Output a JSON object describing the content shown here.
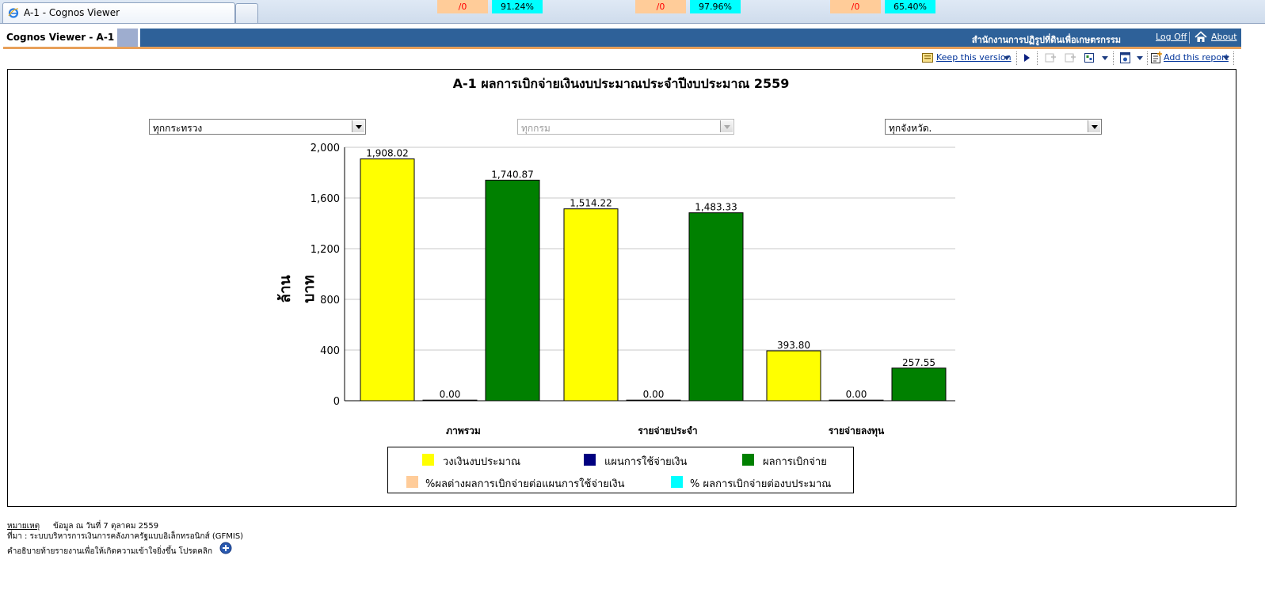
{
  "browser": {
    "tab_title": "A-1 - Cognos Viewer"
  },
  "header": {
    "app_title": "Cognos Viewer - A-1",
    "organization": "สำนักงานการปฏิรูปที่ดินเพื่อเกษตรกรรม",
    "logoff": "Log Off",
    "about": "About"
  },
  "toolbar": {
    "keep_version": "Keep this version",
    "add_report": "Add this report"
  },
  "report": {
    "title": "A-1 ผลการเบิกจ่ายเงินงบประมาณประจำปีงบประมาณ 2559",
    "filters": {
      "ministry": "ทุกกระทรวง",
      "department": "ทุกกรม",
      "province": "ทุกจังหวัด."
    }
  },
  "chart_data": {
    "type": "bar",
    "ylabel": "ล้านบาท",
    "ylim": [
      0,
      2000
    ],
    "yticks": [
      "0",
      "400",
      "800",
      "1,200",
      "1,600",
      "2,000"
    ],
    "grid": true,
    "categories": [
      "ภาพรวม",
      "รายจ่ายประจำ",
      "รายจ่ายลงทุน"
    ],
    "series": [
      {
        "name": "วงเงินงบประมาณ",
        "color": "#ffff00",
        "values": [
          1908.02,
          1514.22,
          393.8
        ],
        "labels": [
          "1,908.02",
          "1,514.22",
          "393.80"
        ]
      },
      {
        "name": "แผนการใช้จ่ายเงิน",
        "color": "#000080",
        "values": [
          0,
          0,
          0
        ],
        "labels": [
          "0.00",
          "0.00",
          "0.00"
        ]
      },
      {
        "name": "ผลการเบิกจ่าย",
        "color": "#008000",
        "values": [
          1740.87,
          1483.33,
          257.55
        ],
        "labels": [
          "1,740.87",
          "1,483.33",
          "257.55"
        ]
      }
    ],
    "percent_series": [
      {
        "name": "%ผลต่างผลการเบิกจ่ายต่อแผนการใช้จ่ายเงิน",
        "color": "#ffcc99",
        "labels": [
          "/0",
          "/0",
          "/0"
        ]
      },
      {
        "name": "% ผลการเบิกจ่ายต่องบประมาณ",
        "color": "#00ffff",
        "labels": [
          "91.24%",
          "97.96%",
          "65.40%"
        ]
      }
    ],
    "legend": "bottom"
  },
  "footer": {
    "note_label": "หมายเหตุ",
    "note_text": "ข้อมูล ณ วันที่ 7 ตุลาคม 2559",
    "source": "ที่มา : ระบบบริหารการเงินการคลังภาครัฐแบบอิเล็กทรอนิกส์ (GFMIS)",
    "explain": "คำอธิบายท้ายรายงานเพื่อให้เกิดความเข้าใจยิ่งขึ้น โปรดคลิก"
  }
}
